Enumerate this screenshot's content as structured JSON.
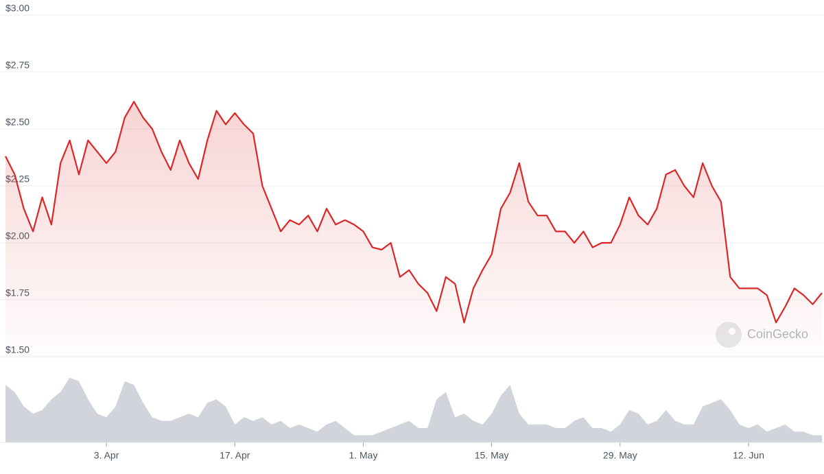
{
  "chart_data": {
    "type": "line",
    "categories": [
      null,
      null,
      null,
      null,
      null,
      null,
      null,
      null,
      null,
      null,
      null,
      "3. Apr",
      null,
      null,
      null,
      null,
      null,
      null,
      null,
      null,
      null,
      null,
      null,
      null,
      null,
      "17. Apr",
      null,
      null,
      null,
      null,
      null,
      null,
      null,
      null,
      null,
      null,
      null,
      null,
      null,
      "1. May",
      null,
      null,
      null,
      null,
      null,
      null,
      null,
      null,
      null,
      null,
      null,
      null,
      null,
      "15. May",
      null,
      null,
      null,
      null,
      null,
      null,
      null,
      null,
      null,
      null,
      null,
      null,
      null,
      "29. May",
      null,
      null,
      null,
      null,
      null,
      null,
      null,
      null,
      null,
      null,
      null,
      null,
      null,
      "12. Jun",
      null,
      null,
      null,
      null,
      null,
      null,
      null,
      null
    ],
    "values": [
      2.38,
      2.3,
      2.15,
      2.05,
      2.2,
      2.08,
      2.35,
      2.45,
      2.3,
      2.45,
      2.4,
      2.35,
      2.4,
      2.55,
      2.62,
      2.55,
      2.5,
      2.4,
      2.32,
      2.45,
      2.35,
      2.28,
      2.45,
      2.58,
      2.52,
      2.57,
      2.52,
      2.48,
      2.25,
      2.15,
      2.05,
      2.1,
      2.08,
      2.12,
      2.05,
      2.15,
      2.08,
      2.1,
      2.08,
      2.05,
      1.98,
      1.97,
      2.0,
      1.85,
      1.88,
      1.82,
      1.78,
      1.7,
      1.85,
      1.82,
      1.65,
      1.8,
      1.88,
      1.95,
      2.15,
      2.22,
      2.35,
      2.18,
      2.12,
      2.12,
      2.05,
      2.05,
      2.0,
      2.05,
      1.98,
      2.0,
      2.0,
      2.08,
      2.2,
      2.12,
      2.08,
      2.15,
      2.3,
      2.32,
      2.25,
      2.2,
      2.35,
      2.25,
      2.18,
      1.85,
      1.8,
      1.8,
      1.8,
      1.77,
      1.65,
      1.72,
      1.8,
      1.77,
      1.73,
      1.78
    ],
    "color": "#dc2626",
    "ylim": [
      1.5,
      3
    ],
    "yticks": [
      {
        "value": 1.5,
        "label": "$1.50"
      },
      {
        "value": 1.75,
        "label": "$1.75"
      },
      {
        "value": 2,
        "label": "$2.00"
      },
      {
        "value": 2.25,
        "label": "$2.25"
      },
      {
        "value": 2.5,
        "label": "$2.50"
      },
      {
        "value": 2.75,
        "label": "$2.75"
      },
      {
        "value": 3,
        "label": "$3.00"
      }
    ],
    "grid": true,
    "volume": {
      "values": [
        80,
        70,
        50,
        40,
        45,
        60,
        70,
        90,
        85,
        60,
        40,
        35,
        50,
        85,
        80,
        55,
        35,
        30,
        30,
        35,
        40,
        35,
        55,
        60,
        50,
        25,
        35,
        30,
        35,
        25,
        30,
        20,
        25,
        20,
        15,
        25,
        30,
        20,
        10,
        10,
        10,
        15,
        20,
        25,
        30,
        20,
        20,
        60,
        70,
        35,
        40,
        30,
        25,
        40,
        65,
        80,
        40,
        25,
        25,
        25,
        20,
        20,
        30,
        35,
        20,
        20,
        15,
        25,
        45,
        40,
        25,
        30,
        45,
        30,
        25,
        25,
        50,
        55,
        60,
        45,
        25,
        20,
        25,
        15,
        20,
        25,
        15,
        15,
        10,
        10
      ],
      "color": "#d1d5db"
    },
    "y2lim": [
      0,
      100
    ],
    "watermark": "CoinGecko"
  }
}
